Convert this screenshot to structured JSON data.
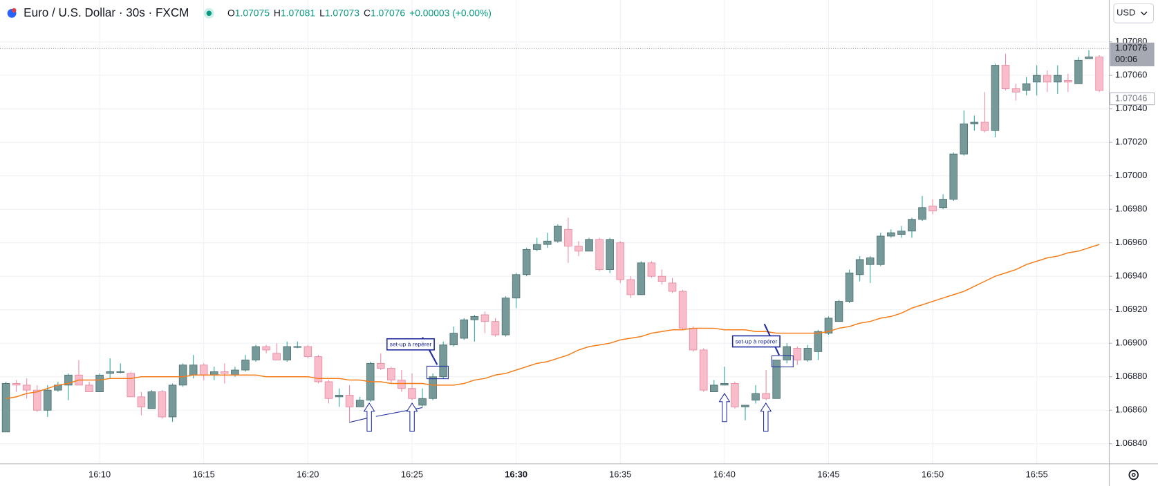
{
  "chart_data": {
    "type": "candlestick",
    "header": {
      "symbol": "Euro / U.S. Dollar · 30s · FXCM",
      "ohlc": [
        {
          "key": "O",
          "value": 1.07075
        },
        {
          "key": "H",
          "value": 1.07081
        },
        {
          "key": "L",
          "value": 1.07073
        },
        {
          "key": "C",
          "value": 1.07076
        }
      ],
      "change": "+0.00003 (+0.00%)"
    },
    "currency": "USD",
    "categories": [
      null,
      null,
      null,
      null,
      null,
      null,
      null,
      null,
      null,
      "16:10",
      null,
      null,
      null,
      null,
      null,
      null,
      null,
      null,
      null,
      "16:15",
      null,
      null,
      null,
      null,
      null,
      null,
      null,
      null,
      null,
      "16:20",
      null,
      null,
      null,
      null,
      null,
      null,
      null,
      null,
      null,
      "16:25",
      null,
      null,
      null,
      null,
      null,
      null,
      null,
      null,
      null,
      "16:30",
      null,
      null,
      null,
      null,
      null,
      null,
      null,
      null,
      null,
      "16:35",
      null,
      null,
      null,
      null,
      null,
      null,
      null,
      null,
      null,
      "16:40",
      null,
      null,
      null,
      null,
      null,
      null,
      null,
      null,
      null,
      "16:45",
      null,
      null,
      null,
      null,
      null,
      null,
      null,
      null,
      null,
      "16:50",
      null,
      null,
      null,
      null,
      null,
      null,
      null,
      null,
      null,
      "16:55",
      null,
      null,
      null,
      null,
      null,
      null
    ],
    "open": [
      1.06847,
      1.06876,
      1.06875,
      1.06872,
      1.0686,
      1.06872,
      1.06875,
      1.06881,
      1.06875,
      1.06871,
      1.06882,
      1.06883,
      1.06882,
      1.06868,
      1.06861,
      1.06871,
      1.06856,
      1.06875,
      1.06881,
      1.06887,
      1.06881,
      1.06883,
      1.06881,
      1.06884,
      1.0689,
      1.06898,
      1.06894,
      1.0689,
      1.06898,
      1.06898,
      1.06892,
      1.06877,
      1.06868,
      1.06869,
      1.06862,
      1.06866,
      1.06888,
      1.06885,
      1.06878,
      1.06873,
      1.06863,
      1.06867,
      1.0688,
      1.06899,
      1.06903,
      1.06914,
      1.06917,
      1.06913,
      1.06905,
      1.06927,
      1.06941,
      1.06956,
      1.06959,
      1.06961,
      1.06968,
      1.06958,
      1.06955,
      1.06962,
      1.06944,
      1.0696,
      1.06938,
      1.06929,
      1.06948,
      1.0694,
      1.06936,
      1.06931,
      1.06909,
      1.06896,
      1.06871,
      1.06875,
      1.06876,
      1.06862,
      1.06866,
      1.0687,
      1.06867,
      1.0689,
      1.06897,
      1.0689,
      1.06895,
      1.06906,
      1.06913,
      1.06925,
      1.06941,
      1.06947,
      1.06947,
      1.06964,
      1.06965,
      1.06967,
      1.06974,
      1.06982,
      1.06981,
      1.06986,
      1.07013,
      1.07031,
      1.07032,
      1.07027,
      1.07066,
      1.07052,
      1.07051,
      1.07056,
      1.0706,
      1.07056,
      1.07057,
      1.07055,
      1.0707,
      1.07071
    ],
    "high": [
      1.06877,
      1.06878,
      1.06879,
      1.06875,
      1.06875,
      1.06877,
      1.06882,
      1.0689,
      1.06877,
      1.06882,
      1.06891,
      1.06888,
      1.06883,
      1.06871,
      1.06872,
      1.06872,
      1.06876,
      1.06888,
      1.06893,
      1.06888,
      1.06886,
      1.06888,
      1.06886,
      1.06893,
      1.06899,
      1.06899,
      1.069,
      1.06901,
      1.06901,
      1.06899,
      1.06893,
      1.06878,
      1.06873,
      1.06875,
      1.06868,
      1.06889,
      1.06894,
      1.06886,
      1.06884,
      1.06882,
      1.06873,
      1.06882,
      1.06901,
      1.0691,
      1.06915,
      1.06917,
      1.06919,
      1.06915,
      1.06928,
      1.06942,
      1.06957,
      1.06963,
      1.06966,
      1.06971,
      1.06975,
      1.06961,
      1.06963,
      1.06963,
      1.06963,
      1.06961,
      1.0694,
      1.06949,
      1.06949,
      1.06944,
      1.06939,
      1.06932,
      1.0691,
      1.06897,
      1.06878,
      1.06886,
      1.06877,
      1.06863,
      1.06875,
      1.06884,
      1.0689,
      1.069,
      1.06898,
      1.06899,
      1.06908,
      1.06916,
      1.06926,
      1.06944,
      1.06952,
      1.06952,
      1.06966,
      1.06968,
      1.0697,
      1.06975,
      1.06988,
      1.06986,
      1.06989,
      1.07014,
      1.07039,
      1.07036,
      1.0705,
      1.07067,
      1.07073,
      1.07055,
      1.07059,
      1.07066,
      1.07063,
      1.07066,
      1.07061,
      1.07071,
      1.07075,
      1.07072
    ],
    "low": [
      1.06847,
      1.06871,
      1.06867,
      1.06859,
      1.06856,
      1.06871,
      1.06866,
      1.06875,
      1.06871,
      1.06871,
      1.06879,
      1.06882,
      1.06868,
      1.06857,
      1.06861,
      1.06855,
      1.06853,
      1.06874,
      1.06879,
      1.06878,
      1.06878,
      1.06876,
      1.0688,
      1.06883,
      1.06889,
      1.06894,
      1.0689,
      1.06889,
      1.06897,
      1.06891,
      1.06876,
      1.06864,
      1.06862,
      1.06853,
      1.06862,
      1.06865,
      1.06884,
      1.06876,
      1.06871,
      1.06866,
      1.06862,
      1.06866,
      1.06879,
      1.06898,
      1.06902,
      1.06901,
      1.06906,
      1.06904,
      1.06904,
      1.06921,
      1.0694,
      1.06955,
      1.06957,
      1.0696,
      1.06948,
      1.06952,
      1.06955,
      1.06943,
      1.06942,
      1.06936,
      1.06927,
      1.06929,
      1.06939,
      1.06935,
      1.0693,
      1.06908,
      1.06895,
      1.06871,
      1.06871,
      1.06875,
      1.06861,
      1.06854,
      1.06864,
      1.06866,
      1.06867,
      1.06888,
      1.06887,
      1.06889,
      1.0689,
      1.06905,
      1.06913,
      1.06924,
      1.06937,
      1.06936,
      1.06946,
      1.06963,
      1.06963,
      1.06963,
      1.06973,
      1.06977,
      1.0698,
      1.06985,
      1.07012,
      1.07027,
      1.07026,
      1.07023,
      1.07051,
      1.07045,
      1.07048,
      1.07048,
      1.0705,
      1.07049,
      1.0705,
      1.07055,
      1.0707,
      1.0705
    ],
    "close": [
      1.06876,
      1.06875,
      1.06872,
      1.0686,
      1.06872,
      1.06875,
      1.06881,
      1.06875,
      1.06871,
      1.06881,
      1.06883,
      1.06883,
      1.06868,
      1.06862,
      1.06871,
      1.06856,
      1.06875,
      1.06887,
      1.06887,
      1.06881,
      1.06883,
      1.06882,
      1.06884,
      1.0689,
      1.06898,
      1.06896,
      1.0689,
      1.06898,
      1.06898,
      1.06892,
      1.06877,
      1.06867,
      1.06869,
      1.06862,
      1.06866,
      1.06888,
      1.06885,
      1.06878,
      1.06873,
      1.06867,
      1.06867,
      1.0688,
      1.06899,
      1.06906,
      1.06914,
      1.06916,
      1.06913,
      1.06905,
      1.06927,
      1.06941,
      1.06956,
      1.06959,
      1.06961,
      1.0697,
      1.06958,
      1.06955,
      1.06962,
      1.06944,
      1.06962,
      1.06938,
      1.06929,
      1.06948,
      1.0694,
      1.06937,
      1.06931,
      1.06909,
      1.06896,
      1.06872,
      1.06875,
      1.06876,
      1.06862,
      1.06863,
      1.0687,
      1.06867,
      1.0689,
      1.06898,
      1.0689,
      1.06897,
      1.06907,
      1.06915,
      1.06925,
      1.06942,
      1.0695,
      1.06951,
      1.06964,
      1.06966,
      1.06967,
      1.06974,
      1.06981,
      1.06979,
      1.06986,
      1.07013,
      1.07031,
      1.07032,
      1.07027,
      1.07066,
      1.07052,
      1.0705,
      1.07055,
      1.0706,
      1.07056,
      1.0706,
      1.07056,
      1.07069,
      1.07071,
      1.07051
    ],
    "ma": {
      "color": "#f57c17",
      "values": [
        1.06867,
        1.06868,
        1.0687,
        1.06871,
        1.06873,
        1.06875,
        1.06876,
        1.06878,
        1.06878,
        1.06878,
        1.06879,
        1.06879,
        1.06879,
        1.0688,
        1.0688,
        1.0688,
        1.0688,
        1.0688,
        1.06881,
        1.06881,
        1.06881,
        1.06881,
        1.06881,
        1.06881,
        1.06881,
        1.0688,
        1.0688,
        1.0688,
        1.0688,
        1.0688,
        1.06879,
        1.06879,
        1.06879,
        1.06878,
        1.06878,
        1.06877,
        1.06877,
        1.06876,
        1.06876,
        1.06876,
        1.06876,
        1.06875,
        1.06875,
        1.06875,
        1.06876,
        1.06878,
        1.06879,
        1.06881,
        1.06882,
        1.06884,
        1.06886,
        1.06888,
        1.06889,
        1.06891,
        1.06893,
        1.06896,
        1.06898,
        1.06899,
        1.069,
        1.06902,
        1.06903,
        1.06904,
        1.06906,
        1.06907,
        1.06908,
        1.06908,
        1.06909,
        1.06909,
        1.06909,
        1.06908,
        1.06908,
        1.06908,
        1.06907,
        1.06907,
        1.06906,
        1.06906,
        1.06906,
        1.06906,
        1.06906,
        1.06907,
        1.06909,
        1.0691,
        1.06912,
        1.06913,
        1.06915,
        1.06916,
        1.06918,
        1.06921,
        1.06923,
        1.06925,
        1.06927,
        1.06929,
        1.06931,
        1.06934,
        1.06937,
        1.0694,
        1.06942,
        1.06944,
        1.06947,
        1.06949,
        1.06951,
        1.06952,
        1.06954,
        1.06955,
        1.06957,
        1.06959
      ]
    },
    "colors": {
      "up_body": "#76999a",
      "up_border": "#4e6e6e",
      "up_wick": "#26a69a",
      "down_body": "#f8bccb",
      "down_border": "#e88aa0",
      "down_wick": "#f1879f"
    },
    "ylim": [
      1.06828,
      1.07105
    ],
    "yticks": [
      {
        "value": 1.0684,
        "label": "1.06840"
      },
      {
        "value": 1.0686,
        "label": "1.06860"
      },
      {
        "value": 1.0688,
        "label": "1.06880"
      },
      {
        "value": 1.069,
        "label": "1.06900"
      },
      {
        "value": 1.0692,
        "label": "1.06920"
      },
      {
        "value": 1.0694,
        "label": "1.06940"
      },
      {
        "value": 1.0696,
        "label": "1.06960"
      },
      {
        "value": 1.0698,
        "label": "1.06980"
      },
      {
        "value": 1.07,
        "label": "1.07000"
      },
      {
        "value": 1.0702,
        "label": "1.07020"
      },
      {
        "value": 1.0704,
        "label": "1.07040"
      },
      {
        "value": 1.0706,
        "label": "1.07060"
      },
      {
        "value": 1.0708,
        "label": "1.07080"
      }
    ],
    "grid": true,
    "last_price": 1.07076,
    "countdown": "00:06",
    "alert_price": 1.07046,
    "annotations": [
      "set-up à repérer",
      "set-up à repérer"
    ]
  }
}
